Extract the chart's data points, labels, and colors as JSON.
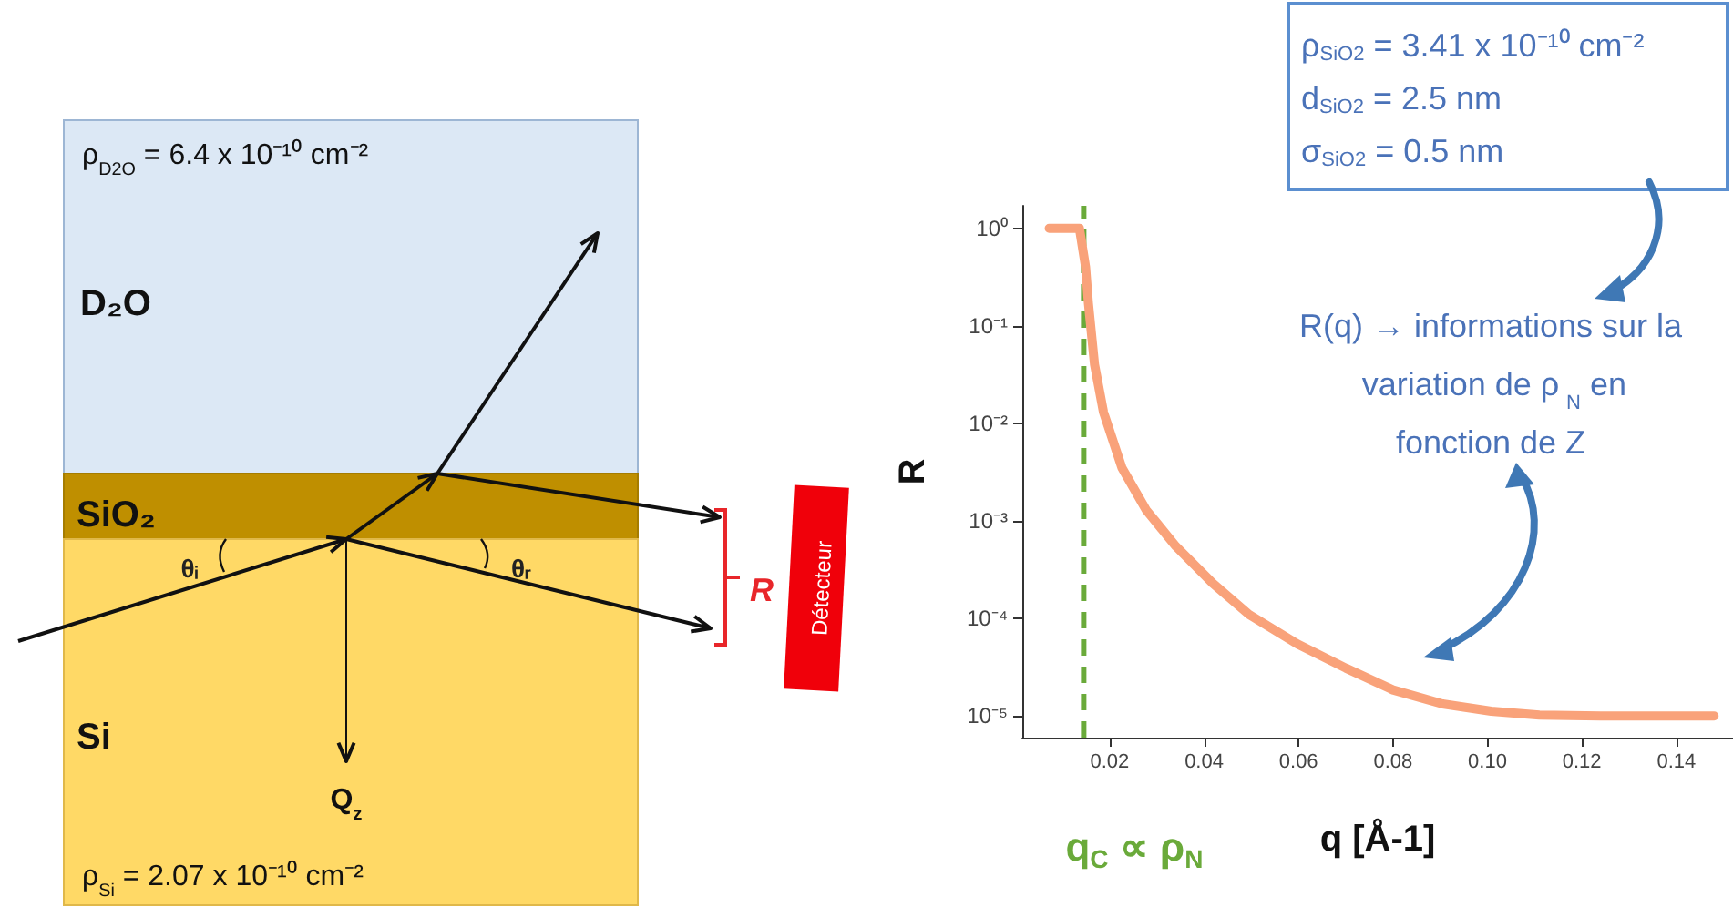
{
  "chart_data": [
    {
      "type": "other",
      "annotations": [
        "ρ$_{D2O}$ = 6.4 x 10⁻¹⁰ cm⁻²",
        "D₂O",
        "SiO₂",
        "Si",
        "θᵢ",
        "θᵣ",
        "R",
        "Détecteur",
        "Q$_{z}$",
        "ρ$_{Si}$ = 2.07 x 10⁻¹⁰ cm⁻²"
      ]
    },
    {
      "type": "line",
      "xlabel": "q [Å-1]",
      "ylabel": "R",
      "log": "y",
      "x": [
        0.0072,
        0.0136,
        0.0149,
        0.0155,
        0.0168,
        0.0187,
        0.0226,
        0.0277,
        0.034,
        0.0418,
        0.0495,
        0.0597,
        0.07,
        0.08,
        0.0905,
        0.1008,
        0.111,
        0.124,
        0.148
      ],
      "series": [
        {
          "color": "#f9a27a",
          "values": [
            1,
            1,
            0.4,
            0.17,
            0.04,
            0.013,
            0.0035,
            0.0013,
            0.00055,
            0.00023,
            0.00011,
            5.5e-05,
            3.1e-05,
            1.85e-05,
            1.33e-05,
            1.12e-05,
            1.02e-05,
            1e-05,
            1e-05
          ]
        }
      ],
      "xlim": [
        0.0015,
        0.152
      ],
      "ylim": [
        6e-06,
        1.7
      ],
      "xticks": [
        {
          "value": 0.02,
          "label": "0.02"
        },
        {
          "value": 0.04,
          "label": "0.04"
        },
        {
          "value": 0.06,
          "label": "0.06"
        },
        {
          "value": 0.08,
          "label": "0.08"
        },
        {
          "value": 0.1,
          "label": "0.10"
        },
        {
          "value": 0.12,
          "label": "0.12"
        },
        {
          "value": 0.14,
          "label": "0.14"
        }
      ],
      "yticks": [
        {
          "value": 1e-05,
          "label": "10⁻⁵"
        },
        {
          "value": 0.0001,
          "label": "10⁻⁴"
        },
        {
          "value": 0.001,
          "label": "10⁻³"
        },
        {
          "value": 0.01,
          "label": "10⁻²"
        },
        {
          "value": 0.1,
          "label": "10⁻¹"
        },
        {
          "value": 1,
          "label": "10⁰"
        }
      ],
      "ref_lines": [
        {
          "axis": "x",
          "value": 0.0145,
          "label": "q$_{C}$ ∝ ρ$_{N}$",
          "color": "#6aaa3a",
          "line_style": "dashed"
        }
      ],
      "annotations": [
        "ρ$_{SiO2}$ = 3.41 x 10⁻¹⁰ cm⁻²",
        "d$_{SiO2}$ = 2.5 nm",
        "σ$_{SiO2}$ = 0.5 nm",
        "R(q) → informations sur la variation de ρ$_{N}$ en fonction de Z"
      ]
    }
  ]
}
